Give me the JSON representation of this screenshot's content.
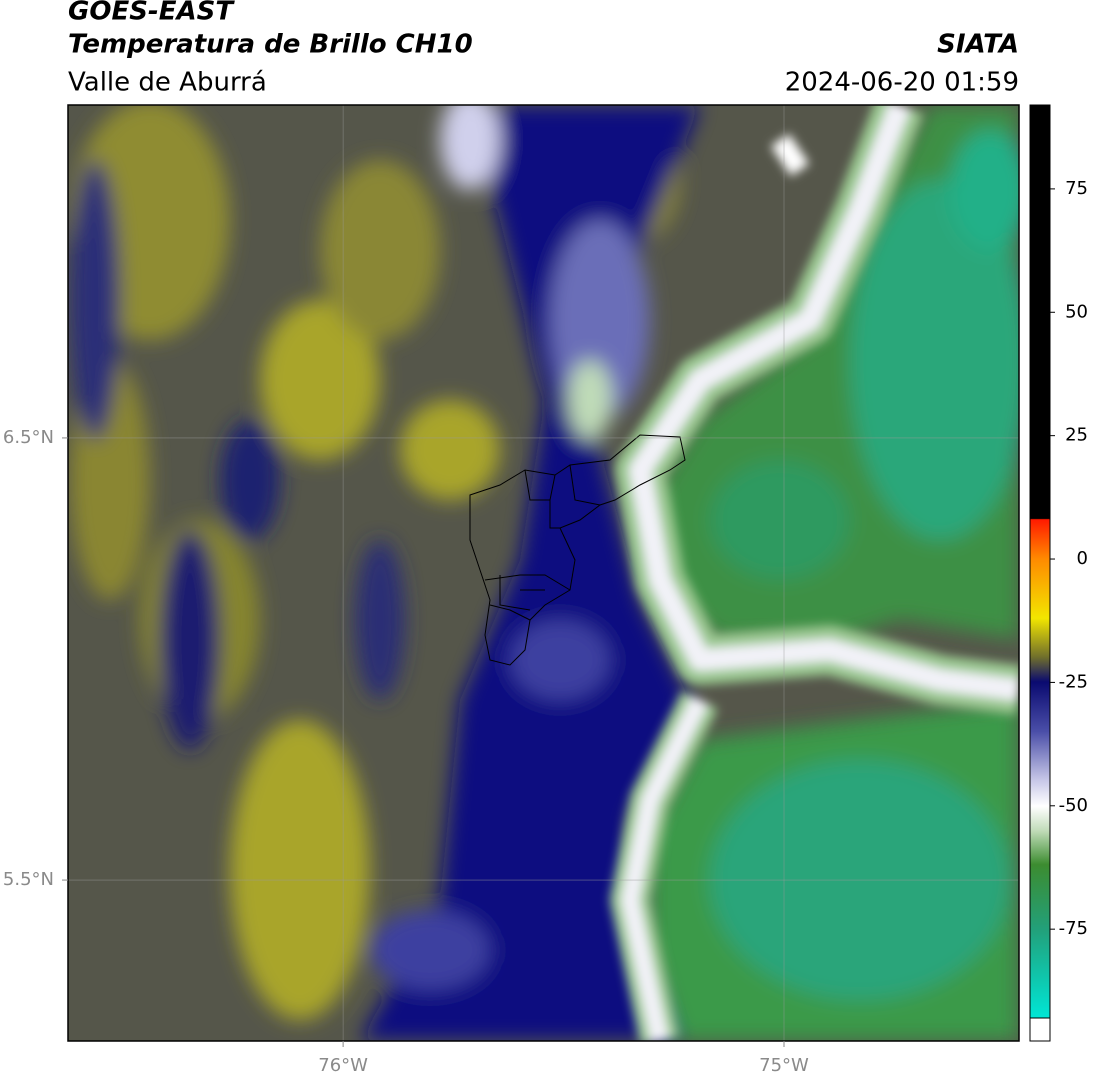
{
  "map": {
    "title": "GOES-EAST",
    "subtitle": "Temperatura de Brillo CH10",
    "region": "Valle de Aburrá",
    "source": "SIATA",
    "datetime": "2024-06-20 01:59",
    "xlim": [
      -76.624,
      -74.467
    ],
    "ylim": [
      5.136,
      7.253
    ],
    "xticks": [
      {
        "value": -76,
        "label": "76°W"
      },
      {
        "value": -75,
        "label": "75°W"
      }
    ],
    "yticks": [
      {
        "value": 6.5,
        "label": "6.5°N"
      },
      {
        "value": 5.5,
        "label": "5.5°N"
      }
    ],
    "grid": true,
    "colorbar": {
      "lim": [
        -93,
        92
      ],
      "ticks": [
        75,
        50,
        25,
        0,
        -25,
        -50,
        -75
      ]
    }
  }
}
